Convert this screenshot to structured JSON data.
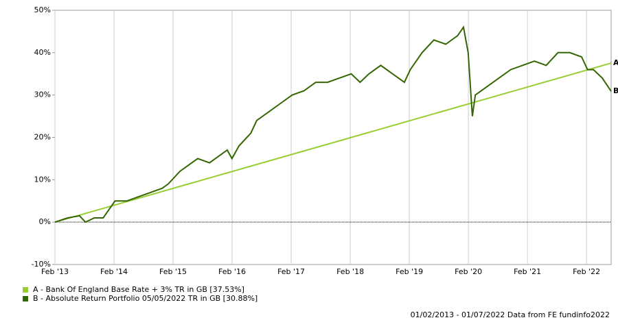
{
  "chart_data": {
    "type": "line",
    "xlim": [
      2013.0833,
      2022.5
    ],
    "xticks": [
      {
        "value": 2013.0833,
        "label": "Feb '13"
      },
      {
        "value": 2014.0833,
        "label": "Feb '14"
      },
      {
        "value": 2015.0833,
        "label": "Feb '15"
      },
      {
        "value": 2016.0833,
        "label": "Feb '16"
      },
      {
        "value": 2017.0833,
        "label": "Feb '17"
      },
      {
        "value": 2018.0833,
        "label": "Feb '18"
      },
      {
        "value": 2019.0833,
        "label": "Feb '19"
      },
      {
        "value": 2020.0833,
        "label": "Feb '20"
      },
      {
        "value": 2021.0833,
        "label": "Feb '21"
      },
      {
        "value": 2022.0833,
        "label": "Feb '22"
      }
    ],
    "ylim": [
      -10,
      50
    ],
    "yticks": [
      {
        "value": -10,
        "label": "-10%"
      },
      {
        "value": 0,
        "label": "0%"
      },
      {
        "value": 10,
        "label": "10%"
      },
      {
        "value": 20,
        "label": "20%"
      },
      {
        "value": 30,
        "label": "30%"
      },
      {
        "value": 40,
        "label": "40%"
      },
      {
        "value": 50,
        "label": "50%"
      }
    ],
    "grid": true,
    "series": [
      {
        "name": "A - Bank Of England Base Rate + 3% TR in GB [37.53%]",
        "end_label": "A",
        "color": "#99cc33",
        "x": [
          2013.0833,
          2022.5
        ],
        "values": [
          0,
          37.53
        ]
      },
      {
        "name": "B - Absolute Return Portfolio 05/05/2022 TR in GB [30.88%]",
        "end_label": "B",
        "color": "#336600",
        "x": [
          2013.0833,
          2013.3,
          2013.5,
          2013.6,
          2013.75,
          2013.9,
          2014.0,
          2014.1,
          2014.3,
          2014.5,
          2014.7,
          2014.9,
          2015.0,
          2015.2,
          2015.4,
          2015.5,
          2015.7,
          2015.9,
          2016.0,
          2016.08,
          2016.2,
          2016.4,
          2016.5,
          2016.7,
          2016.9,
          2017.1,
          2017.3,
          2017.5,
          2017.7,
          2017.9,
          2018.1,
          2018.25,
          2018.4,
          2018.6,
          2018.8,
          2019.0,
          2019.1,
          2019.3,
          2019.5,
          2019.7,
          2019.9,
          2020.0,
          2020.08,
          2020.15,
          2020.2,
          2020.4,
          2020.6,
          2020.8,
          2021.0,
          2021.2,
          2021.4,
          2021.6,
          2021.8,
          2022.0,
          2022.1,
          2022.2,
          2022.35,
          2022.5
        ],
        "values": [
          0,
          1,
          1.5,
          0,
          1,
          1,
          3,
          5,
          5,
          6,
          7,
          8,
          9,
          12,
          14,
          15,
          14,
          16,
          17,
          15,
          18,
          21,
          24,
          26,
          28,
          30,
          31,
          33,
          33,
          34,
          35,
          33,
          35,
          37,
          35,
          33,
          36,
          40,
          43,
          42,
          44,
          46,
          40,
          25,
          30,
          32,
          34,
          36,
          37,
          38,
          37,
          40,
          40,
          39,
          36,
          36,
          34,
          30.88
        ]
      }
    ],
    "footer": "01/02/2013 - 01/07/2022 Data from FE fundinfo2022"
  }
}
